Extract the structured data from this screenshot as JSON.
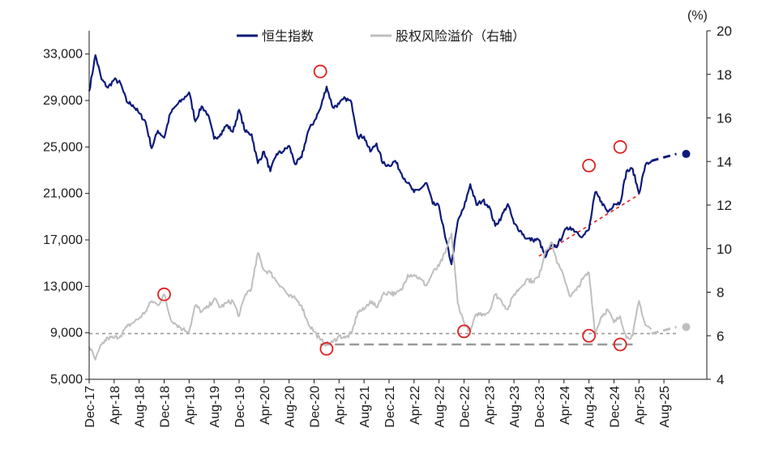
{
  "chart_data": {
    "type": "line",
    "unit_right": "(%)",
    "legend": [
      {
        "label": "恒生指数",
        "color": "#0c1a7a"
      },
      {
        "label": "股权风险溢价（右轴）",
        "color": "#bfbfbf"
      }
    ],
    "x_ticks": [
      "Dec-17",
      "Apr-18",
      "Aug-18",
      "Dec-18",
      "Apr-19",
      "Aug-19",
      "Dec-19",
      "Apr-20",
      "Aug-20",
      "Dec-20",
      "Apr-21",
      "Aug-21",
      "Dec-21",
      "Apr-22",
      "Aug-22",
      "Dec-22",
      "Apr-23",
      "Aug-23",
      "Dec-23",
      "Apr-24",
      "Aug-24",
      "Dec-24",
      "Apr-25",
      "Aug-25"
    ],
    "y_left": {
      "min": 5000,
      "max": 35000,
      "ticks": [
        "5,000",
        "9,000",
        "13,000",
        "17,000",
        "21,000",
        "25,000",
        "29,000",
        "33,000"
      ]
    },
    "y_right": {
      "min": 4,
      "max": 20,
      "ticks": [
        "4",
        "6",
        "8",
        "10",
        "12",
        "14",
        "16",
        "18",
        "20"
      ]
    },
    "series": [
      {
        "name": "恒生指数",
        "axis": "left",
        "color": "#0c1a7a",
        "points": [
          [
            "2017-12",
            29800
          ],
          [
            "2018-01",
            32900
          ],
          [
            "2018-02",
            30800
          ],
          [
            "2018-03",
            30100
          ],
          [
            "2018-04",
            30800
          ],
          [
            "2018-05",
            30500
          ],
          [
            "2018-06",
            28900
          ],
          [
            "2018-07",
            28600
          ],
          [
            "2018-08",
            27900
          ],
          [
            "2018-09",
            27200
          ],
          [
            "2018-10",
            24900
          ],
          [
            "2018-11",
            26400
          ],
          [
            "2018-12",
            25800
          ],
          [
            "2019-01",
            27900
          ],
          [
            "2019-02",
            28600
          ],
          [
            "2019-03",
            29100
          ],
          [
            "2019-04",
            29700
          ],
          [
            "2019-05",
            27200
          ],
          [
            "2019-06",
            28500
          ],
          [
            "2019-07",
            27800
          ],
          [
            "2019-08",
            25700
          ],
          [
            "2019-09",
            26100
          ],
          [
            "2019-10",
            26900
          ],
          [
            "2019-11",
            26300
          ],
          [
            "2019-12",
            28200
          ],
          [
            "2020-01",
            26300
          ],
          [
            "2020-02",
            26100
          ],
          [
            "2020-03",
            23600
          ],
          [
            "2020-04",
            24600
          ],
          [
            "2020-05",
            22900
          ],
          [
            "2020-06",
            24400
          ],
          [
            "2020-07",
            24600
          ],
          [
            "2020-08",
            25100
          ],
          [
            "2020-09",
            23500
          ],
          [
            "2020-10",
            24100
          ],
          [
            "2020-11",
            26300
          ],
          [
            "2020-12",
            27200
          ],
          [
            "2021-01",
            28300
          ],
          [
            "2021-02",
            30200
          ],
          [
            "2021-03",
            28400
          ],
          [
            "2021-04",
            28700
          ],
          [
            "2021-05",
            29200
          ],
          [
            "2021-06",
            28800
          ],
          [
            "2021-07",
            25900
          ],
          [
            "2021-08",
            25900
          ],
          [
            "2021-09",
            24600
          ],
          [
            "2021-10",
            25300
          ],
          [
            "2021-11",
            23600
          ],
          [
            "2021-12",
            23400
          ],
          [
            "2022-01",
            23800
          ],
          [
            "2022-02",
            22700
          ],
          [
            "2022-03",
            21900
          ],
          [
            "2022-04",
            21100
          ],
          [
            "2022-05",
            21400
          ],
          [
            "2022-06",
            21900
          ],
          [
            "2022-07",
            20100
          ],
          [
            "2022-08",
            19900
          ],
          [
            "2022-09",
            17200
          ],
          [
            "2022-10",
            14900
          ],
          [
            "2022-11",
            18600
          ],
          [
            "2022-12",
            19800
          ],
          [
            "2023-01",
            21800
          ],
          [
            "2023-02",
            20000
          ],
          [
            "2023-03",
            20400
          ],
          [
            "2023-04",
            19900
          ],
          [
            "2023-05",
            18200
          ],
          [
            "2023-06",
            19000
          ],
          [
            "2023-07",
            20100
          ],
          [
            "2023-08",
            18400
          ],
          [
            "2023-09",
            17800
          ],
          [
            "2023-10",
            17100
          ],
          [
            "2023-11",
            17000
          ],
          [
            "2023-12",
            17000
          ],
          [
            "2024-01",
            15500
          ],
          [
            "2024-02",
            16500
          ],
          [
            "2024-03",
            16500
          ],
          [
            "2024-04",
            17700
          ],
          [
            "2024-05",
            18100
          ],
          [
            "2024-06",
            17700
          ],
          [
            "2024-07",
            17300
          ],
          [
            "2024-08",
            17900
          ],
          [
            "2024-09",
            21100
          ],
          [
            "2024-10",
            20300
          ],
          [
            "2024-11",
            19400
          ],
          [
            "2024-12",
            20100
          ],
          [
            "2025-01",
            20200
          ],
          [
            "2025-02",
            22900
          ],
          [
            "2025-03",
            23100
          ],
          [
            "2025-04",
            21000
          ],
          [
            "2025-05",
            23400
          ],
          [
            "2025-06",
            23800
          ]
        ]
      },
      {
        "name": "恒生指数 (forecast)",
        "axis": "left",
        "color": "#0c1a7a",
        "dashed": true,
        "points": [
          [
            "2025-06",
            23800
          ],
          [
            "2025-10",
            24400
          ]
        ],
        "end_marker": true
      },
      {
        "name": "股权风险溢价（右轴）",
        "axis": "right",
        "color": "#bfbfbf",
        "points": [
          [
            "2017-12",
            5.5
          ],
          [
            "2018-01",
            4.9
          ],
          [
            "2018-02",
            5.6
          ],
          [
            "2018-03",
            5.9
          ],
          [
            "2018-04",
            5.9
          ],
          [
            "2018-05",
            6.0
          ],
          [
            "2018-06",
            6.4
          ],
          [
            "2018-07",
            6.6
          ],
          [
            "2018-08",
            6.8
          ],
          [
            "2018-09",
            7.1
          ],
          [
            "2018-10",
            7.6
          ],
          [
            "2018-11",
            7.4
          ],
          [
            "2018-12",
            7.9
          ],
          [
            "2019-01",
            6.8
          ],
          [
            "2019-02",
            6.5
          ],
          [
            "2019-03",
            6.3
          ],
          [
            "2019-04",
            6.2
          ],
          [
            "2019-05",
            7.4
          ],
          [
            "2019-06",
            7.1
          ],
          [
            "2019-07",
            7.3
          ],
          [
            "2019-08",
            7.7
          ],
          [
            "2019-09",
            7.3
          ],
          [
            "2019-10",
            7.5
          ],
          [
            "2019-11",
            7.6
          ],
          [
            "2019-12",
            6.9
          ],
          [
            "2020-01",
            7.9
          ],
          [
            "2020-02",
            8.2
          ],
          [
            "2020-03",
            9.8
          ],
          [
            "2020-04",
            9.0
          ],
          [
            "2020-05",
            8.9
          ],
          [
            "2020-06",
            8.5
          ],
          [
            "2020-07",
            8.2
          ],
          [
            "2020-08",
            7.8
          ],
          [
            "2020-09",
            7.7
          ],
          [
            "2020-10",
            7.4
          ],
          [
            "2020-11",
            6.6
          ],
          [
            "2020-12",
            6.2
          ],
          [
            "2021-01",
            5.8
          ],
          [
            "2021-02",
            5.6
          ],
          [
            "2021-03",
            5.7
          ],
          [
            "2021-04",
            6.0
          ],
          [
            "2021-05",
            5.9
          ],
          [
            "2021-06",
            6.1
          ],
          [
            "2021-07",
            7.1
          ],
          [
            "2021-08",
            7.2
          ],
          [
            "2021-09",
            7.6
          ],
          [
            "2021-10",
            7.3
          ],
          [
            "2021-11",
            7.9
          ],
          [
            "2021-12",
            8.0
          ],
          [
            "2022-01",
            7.9
          ],
          [
            "2022-02",
            8.1
          ],
          [
            "2022-03",
            8.8
          ],
          [
            "2022-04",
            8.8
          ],
          [
            "2022-05",
            8.6
          ],
          [
            "2022-06",
            8.3
          ],
          [
            "2022-07",
            8.9
          ],
          [
            "2022-08",
            9.2
          ],
          [
            "2022-09",
            9.8
          ],
          [
            "2022-10",
            10.7
          ],
          [
            "2022-11",
            7.5
          ],
          [
            "2022-12",
            6.6
          ],
          [
            "2023-01",
            6.2
          ],
          [
            "2023-02",
            7.0
          ],
          [
            "2023-03",
            7.0
          ],
          [
            "2023-04",
            7.1
          ],
          [
            "2023-05",
            7.9
          ],
          [
            "2023-06",
            7.6
          ],
          [
            "2023-07",
            7.2
          ],
          [
            "2023-08",
            7.9
          ],
          [
            "2023-09",
            8.2
          ],
          [
            "2023-10",
            8.6
          ],
          [
            "2023-11",
            8.5
          ],
          [
            "2023-12",
            8.7
          ],
          [
            "2024-01",
            9.9
          ],
          [
            "2024-02",
            10.3
          ],
          [
            "2024-03",
            9.3
          ],
          [
            "2024-04",
            8.7
          ],
          [
            "2024-05",
            7.8
          ],
          [
            "2024-06",
            8.1
          ],
          [
            "2024-07",
            8.6
          ],
          [
            "2024-08",
            8.9
          ],
          [
            "2024-09",
            6.1
          ],
          [
            "2024-10",
            6.9
          ],
          [
            "2024-11",
            7.2
          ],
          [
            "2024-12",
            6.6
          ],
          [
            "2025-01",
            6.9
          ],
          [
            "2025-02",
            5.9
          ],
          [
            "2025-03",
            6.0
          ],
          [
            "2025-04",
            7.6
          ],
          [
            "2025-05",
            6.5
          ],
          [
            "2025-06",
            6.3
          ]
        ]
      },
      {
        "name": "股权风险溢价 (forecast)",
        "axis": "right",
        "color": "#bfbfbf",
        "dashed": true,
        "points": [
          [
            "2025-06",
            6.1
          ],
          [
            "2025-10",
            6.4
          ]
        ],
        "end_marker": true
      }
    ],
    "reference_lines": [
      {
        "axis": "right",
        "value": 6.1,
        "from": "2017-12",
        "to": "2025-10",
        "color": "#9a9a9a",
        "style": "short-dash"
      },
      {
        "axis": "right",
        "value": 5.6,
        "from": "2021-01",
        "to": "2025-03",
        "color": "#9a9a9a",
        "style": "long-dash"
      },
      {
        "axis": "left",
        "from": [
          "2023-12",
          15600
        ],
        "to": [
          "2025-04",
          20900
        ],
        "color": "#e02020",
        "style": "short-dash"
      }
    ],
    "circles": [
      {
        "axis": "left",
        "x": "2021-01",
        "y": 31500
      },
      {
        "axis": "left",
        "x": "2024-08",
        "y": 23400
      },
      {
        "axis": "left",
        "x": "2025-01",
        "y": 25000
      },
      {
        "axis": "right",
        "x": "2018-12",
        "y": 7.9
      },
      {
        "axis": "right",
        "x": "2021-02",
        "y": 5.4
      },
      {
        "axis": "right",
        "x": "2022-12",
        "y": 6.2
      },
      {
        "axis": "right",
        "x": "2024-08",
        "y": 6.0
      },
      {
        "axis": "right",
        "x": "2025-01",
        "y": 5.6
      }
    ]
  }
}
